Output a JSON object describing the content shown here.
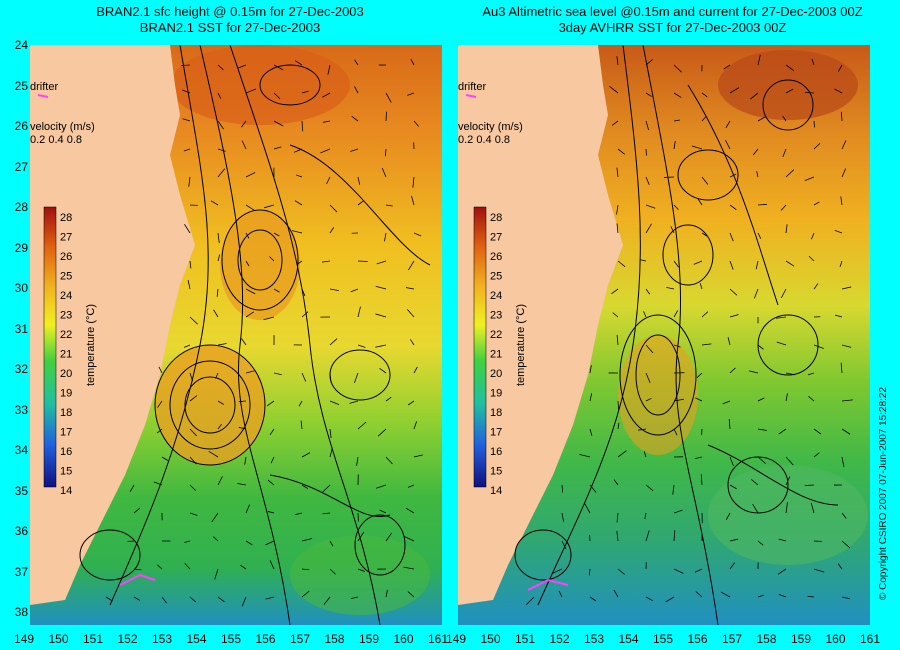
{
  "titles": {
    "left_line1": "BRAN2.1 sfc height @ 0.15m for 27-Dec-2003",
    "left_line2": "BRAN2.1 SST for 27-Dec-2003",
    "right_line1": "Au3 Altimetric sea level  @0.15m and current for 27-Dec-2003 00Z",
    "right_line2": "3day AVHRR SST for 27-Dec-2003 00Z"
  },
  "axes": {
    "lat_ticks": [
      "24",
      "25",
      "26",
      "27",
      "28",
      "29",
      "30",
      "31",
      "32",
      "33",
      "34",
      "35",
      "36",
      "37",
      "38"
    ],
    "lon_ticks_left": [
      "149",
      "150",
      "151",
      "152",
      "153",
      "154",
      "155",
      "156",
      "157",
      "158",
      "159",
      "160",
      "161"
    ],
    "lon_ticks_right": [
      "149",
      "150",
      "151",
      "152",
      "153",
      "154",
      "155",
      "156",
      "157",
      "158",
      "159",
      "160",
      "161"
    ]
  },
  "legend": {
    "drifter_label": "drifter",
    "velocity_label": "velocity (m/s)",
    "velocity_values": "0.2 0.4 0.8",
    "colorbar_title": "temperature (°C)",
    "colorbar_ticks": [
      "28",
      "27",
      "26",
      "25",
      "24",
      "23",
      "22",
      "21",
      "20",
      "19",
      "18",
      "17",
      "16",
      "15",
      "14"
    ]
  },
  "copyright": "© Copyright CSIRO 2007   07-Jun-2007 15:28:22",
  "colors": {
    "land": "#f8c8a0",
    "warm": "#d05a10",
    "orange": "#f0a020",
    "yellow": "#f0e020",
    "green": "#40c040",
    "cyan": "#20c0c0",
    "blue": "#2060d0",
    "drifter": "#ff40ff"
  }
}
